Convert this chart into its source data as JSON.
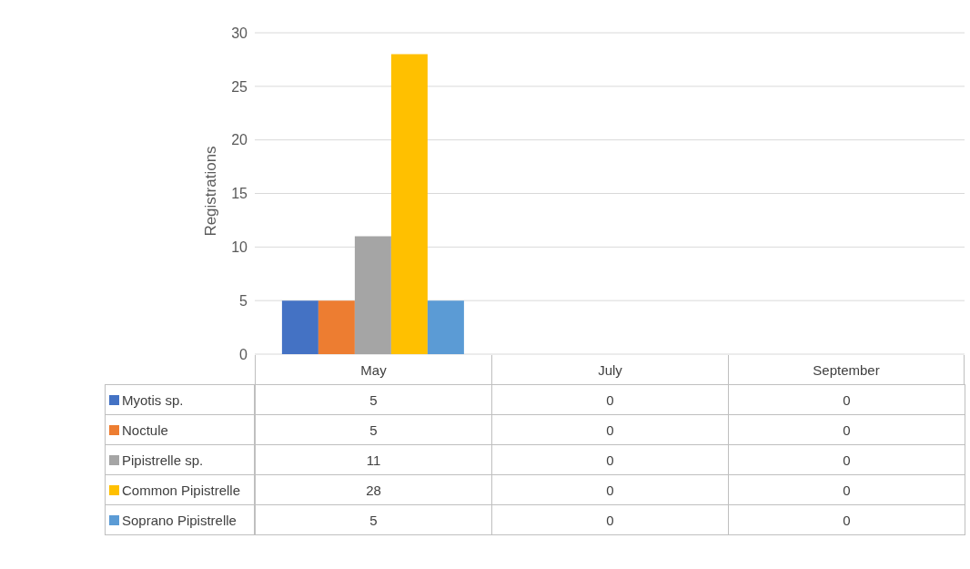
{
  "chart_data": {
    "type": "bar",
    "ylabel": "Registrations",
    "categories": [
      "May",
      "July",
      "September"
    ],
    "series": [
      {
        "name": "Myotis sp.",
        "color": "#4472c4",
        "values": [
          5,
          0,
          0
        ]
      },
      {
        "name": "Noctule",
        "color": "#ed7d31",
        "values": [
          5,
          0,
          0
        ]
      },
      {
        "name": "Pipistrelle sp.",
        "color": "#a5a5a5",
        "values": [
          11,
          0,
          0
        ]
      },
      {
        "name": "Common Pipistrelle",
        "color": "#ffc000",
        "values": [
          28,
          0,
          0
        ]
      },
      {
        "name": "Soprano Pipistrelle",
        "color": "#5b9bd5",
        "values": [
          5,
          0,
          0
        ]
      }
    ],
    "ylim": [
      0,
      30
    ],
    "yticks": [
      0,
      5,
      10,
      15,
      20,
      25,
      30
    ],
    "grid": "y",
    "legend": "bottom",
    "data_labels": true
  }
}
